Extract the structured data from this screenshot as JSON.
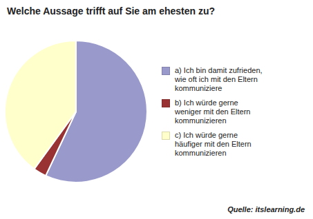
{
  "chart_data": {
    "type": "pie",
    "title": "Welche Aussage trifft auf Sie am ehesten zu?",
    "categories": [
      "a) Ich bin damit zufrieden,\nwie oft ich mit den Eltern\nkommuniziere",
      "b) Ich würde gerne\nweniger mit den Eltern\nkommunizieren",
      "c) Ich würde gerne\nhäufiger mit den Eltern\nkommunizieren"
    ],
    "values": [
      57,
      3,
      40
    ],
    "colors": [
      "#9999cc",
      "#993333",
      "#ffffcc"
    ],
    "legend": "right",
    "annotations": [
      "Quelle: itslearning.de"
    ]
  }
}
